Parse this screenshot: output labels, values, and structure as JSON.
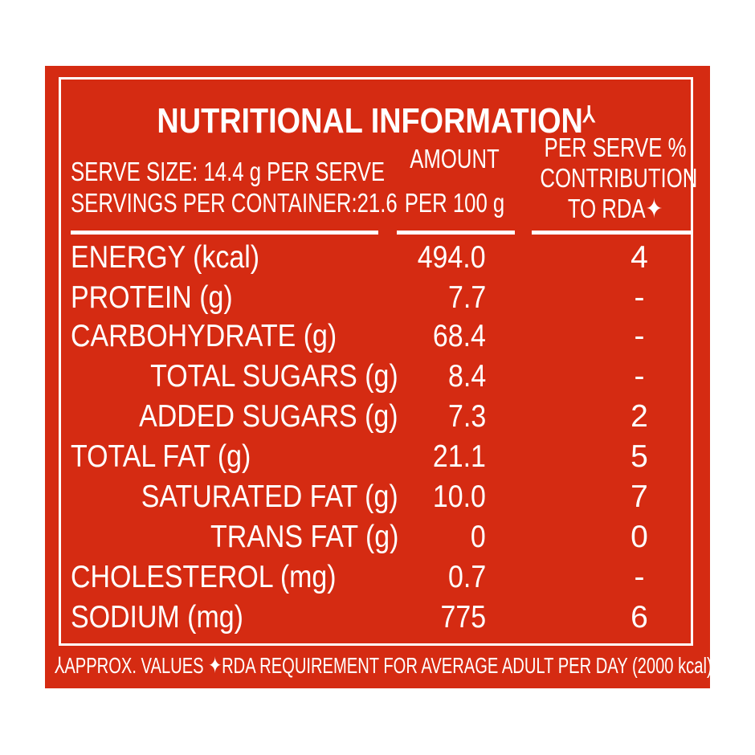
{
  "title": "NUTRITIONAL INFORMATION",
  "title_mark": "⅄",
  "serve_size": "SERVE SIZE: 14.4 g PER SERVE",
  "servings": "SERVINGS PER CONTAINER:21.6",
  "col_amount": [
    "AMOUNT",
    "PER 100 g"
  ],
  "col_rda": [
    "PER SERVE %",
    "CONTRIBUTION",
    "TO RDA✦"
  ],
  "rows": [
    {
      "label": "ENERGY (kcal)",
      "amount": "494.0",
      "rda": "4"
    },
    {
      "label": "PROTEIN (g)",
      "amount": "7.7",
      "rda": "-"
    },
    {
      "label": "CARBOHYDRATE (g)",
      "amount": "68.4",
      "rda": "-"
    },
    {
      "label": "TOTAL SUGARS (g)",
      "amount": "8.4",
      "rda": "-"
    },
    {
      "label": "ADDED SUGARS (g)",
      "amount": "7.3",
      "rda": "2"
    },
    {
      "label": "TOTAL FAT (g)",
      "amount": "21.1",
      "rda": "5"
    },
    {
      "label": "SATURATED FAT (g)",
      "amount": "10.0",
      "rda": "7"
    },
    {
      "label": "TRANS FAT (g)",
      "amount": "0",
      "rda": "0"
    },
    {
      "label": "CHOLESTEROL (mg)",
      "amount": "0.7",
      "rda": "-"
    },
    {
      "label": "SODIUM (mg)",
      "amount": "775",
      "rda": "6"
    }
  ],
  "footnote": "⅄APPROX. VALUES ✦RDA REQUIREMENT FOR AVERAGE ADULT PER DAY (2000 kcal)",
  "colors": {
    "background": "#d52b12",
    "text": "#ffffff"
  }
}
